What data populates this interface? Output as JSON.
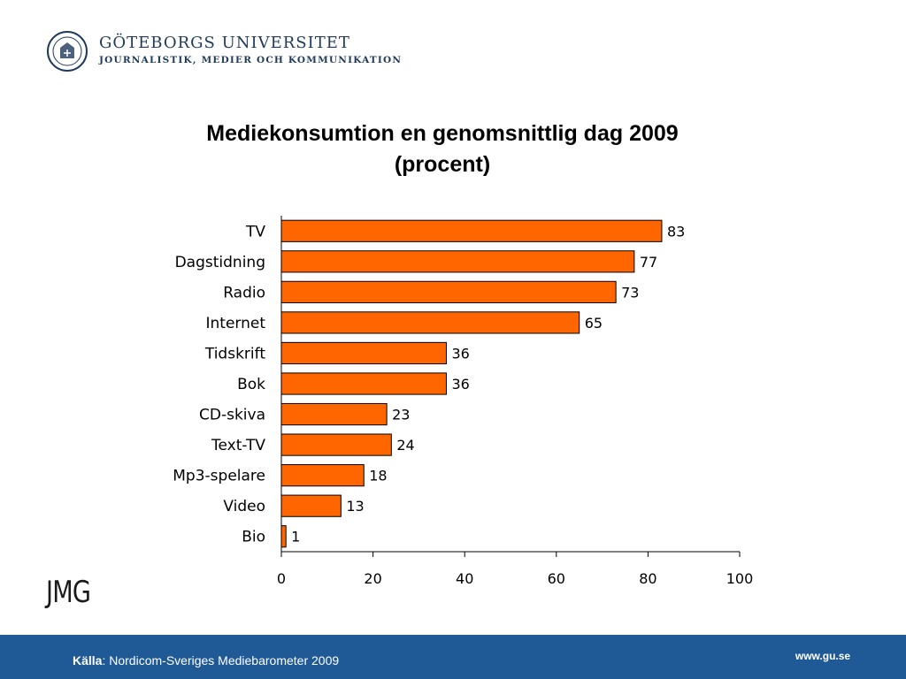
{
  "header": {
    "university": "GÖTEBORGS UNIVERSITET",
    "department": "JOURNALISTIK, MEDIER OCH KOMMUNIKATION"
  },
  "title_line1": "Mediekonsumtion en genomsnittlig dag 2009",
  "title_line2": "(procent)",
  "chart_data": {
    "type": "bar",
    "orientation": "horizontal",
    "title": "Mediekonsumtion en genomsnittlig dag 2009 (procent)",
    "categories": [
      "TV",
      "Dagstidning",
      "Radio",
      "Internet",
      "Tidskrift",
      "Bok",
      "CD-skiva",
      "Text-TV",
      "Mp3-spelare",
      "Video",
      "Bio"
    ],
    "values": [
      83,
      77,
      73,
      65,
      36,
      36,
      23,
      24,
      18,
      13,
      1
    ],
    "xlim": [
      0,
      100
    ],
    "xticks": [
      0,
      20,
      40,
      60,
      80,
      100
    ],
    "grid": false,
    "bar_color": "#ff6600",
    "bar_edge_color": "#000000",
    "data_labels": true
  },
  "logo_text": "JMG",
  "footer": {
    "source_label": "Källa",
    "source_text": ": Nordicom-Sveriges Mediebarometer 2009",
    "url": "www.gu.se",
    "background": "#1f5a96"
  }
}
